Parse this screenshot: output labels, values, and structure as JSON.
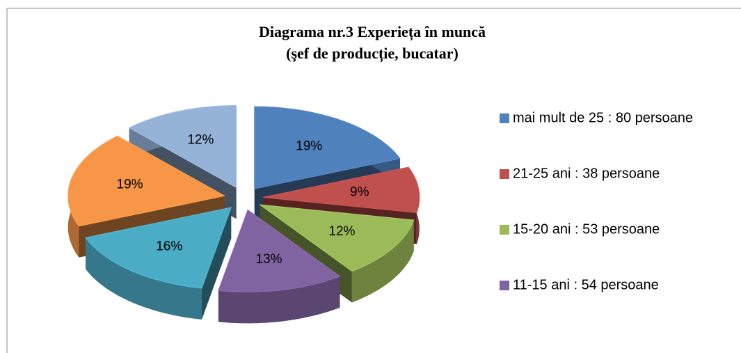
{
  "chart_data": {
    "type": "pie",
    "title": [
      "Diagrama nr.3 Experieța în muncă",
      "(şef de producție, bucatar)"
    ],
    "categories": [
      "mai mult de 25 : 80 persoane",
      "21-25 ani : 38 persoane",
      "15-20 ani : 53 persoane",
      "11-15 ani : 54 persoane",
      null,
      null,
      null
    ],
    "values": [
      19,
      9,
      12,
      13,
      16,
      19,
      12
    ],
    "value_labels": [
      "19%",
      "9%",
      "12%",
      "13%",
      "16%",
      "19%",
      "12%"
    ],
    "colors": [
      "#4f81bd",
      "#c0504d",
      "#9bbb59",
      "#8064a2",
      "#4bacc6",
      "#f79646",
      "#95b3d7"
    ],
    "legend": "right"
  }
}
